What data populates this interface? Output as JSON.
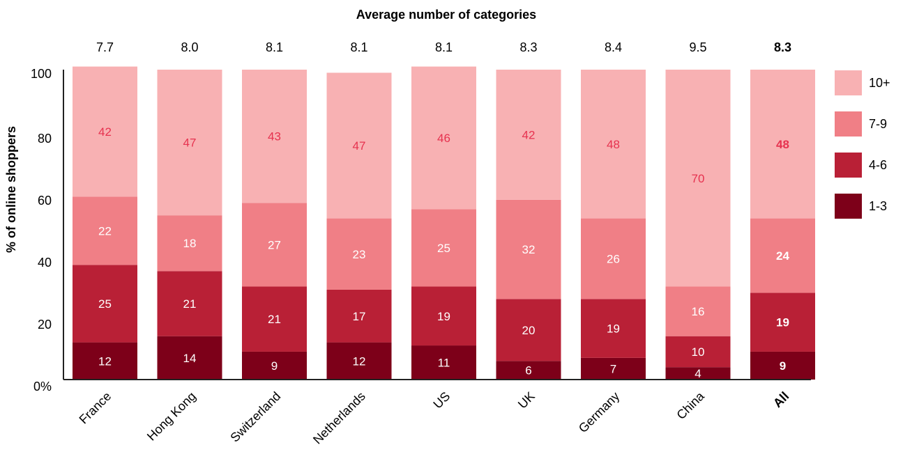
{
  "chart_data": {
    "type": "bar",
    "stacked": true,
    "title": "Average number of categories",
    "ylabel": "% of online shoppers",
    "ylim": [
      0,
      100
    ],
    "yticks": [
      "0%",
      "20",
      "40",
      "60",
      "80",
      "100"
    ],
    "categories": [
      "France",
      "Hong Kong",
      "Switzerland",
      "Netherlands",
      "US",
      "UK",
      "Germany",
      "China",
      "All"
    ],
    "averages": [
      "7.7",
      "8.0",
      "8.1",
      "8.1",
      "8.1",
      "8.3",
      "8.4",
      "9.5",
      "8.3"
    ],
    "highlight_category": "All",
    "series": [
      {
        "name": "1-3",
        "color": "#7d0019",
        "label_color": "#ffffff",
        "values": [
          12,
          14,
          9,
          12,
          11,
          6,
          7,
          4,
          9
        ]
      },
      {
        "name": "4-6",
        "color": "#b92036",
        "label_color": "#ffffff",
        "values": [
          25,
          21,
          21,
          17,
          19,
          20,
          19,
          10,
          19
        ]
      },
      {
        "name": "7-9",
        "color": "#f07f86",
        "label_color": "#ffffff",
        "values": [
          22,
          18,
          27,
          23,
          25,
          32,
          26,
          16,
          24
        ]
      },
      {
        "name": "10+",
        "color": "#f8b1b3",
        "label_color": "#e6324f",
        "values": [
          42,
          47,
          43,
          47,
          46,
          42,
          48,
          70,
          48
        ]
      }
    ],
    "legend_position": "right",
    "grid": false
  }
}
